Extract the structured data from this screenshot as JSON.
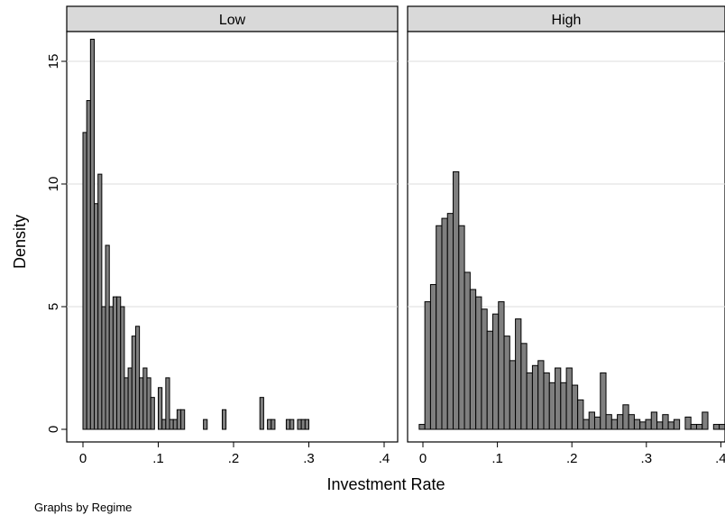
{
  "chart_data": {
    "type": "bar",
    "subtype": "histogram",
    "xlabel": "Investment Rate",
    "ylabel": "Density",
    "note": "Graphs by Regime",
    "ylim": [
      0,
      16
    ],
    "yticks": [
      0,
      5,
      10,
      15
    ],
    "bar_color": "#7f7f7f",
    "panels": [
      {
        "title": "Low",
        "xlim": [
          -0.02,
          0.4
        ],
        "xticks": [
          0,
          0.1,
          0.2,
          0.3,
          0.4
        ],
        "xtick_labels": [
          "0",
          ".1",
          ".2",
          ".3",
          ".4"
        ],
        "bin_start": 0,
        "bin_width": 0.005,
        "values": [
          12.1,
          13.4,
          15.9,
          9.2,
          10.4,
          5.0,
          7.5,
          5.0,
          5.4,
          5.4,
          5.0,
          2.1,
          2.5,
          3.8,
          4.2,
          2.1,
          2.5,
          2.1,
          1.3,
          0,
          1.7,
          0.4,
          2.1,
          0.4,
          0.4,
          0.8,
          0.8,
          0,
          0,
          0,
          0,
          0,
          0.4,
          0,
          0,
          0,
          0,
          0.8,
          0,
          0,
          0,
          0,
          0,
          0,
          0,
          0,
          0,
          1.3,
          0,
          0.4,
          0.4,
          0,
          0,
          0,
          0.4,
          0.4,
          0,
          0.4,
          0.4,
          0.4
        ]
      },
      {
        "title": "High",
        "xlim": [
          -0.02,
          0.4
        ],
        "xticks": [
          0,
          0.1,
          0.2,
          0.3,
          0.4
        ],
        "xtick_labels": [
          "0",
          ".1",
          ".2",
          ".3",
          ".4"
        ],
        "bin_start": -0.005,
        "bin_width": 0.0076,
        "values": [
          0.2,
          5.2,
          5.9,
          8.3,
          8.6,
          8.8,
          10.5,
          8.3,
          6.4,
          5.7,
          5.4,
          4.9,
          4.0,
          4.7,
          5.2,
          3.8,
          2.8,
          4.5,
          3.5,
          2.3,
          2.6,
          2.8,
          2.3,
          1.9,
          2.5,
          1.9,
          2.5,
          1.8,
          1.2,
          0.4,
          0.7,
          0.5,
          2.3,
          0.6,
          0.4,
          0.6,
          1.0,
          0.6,
          0.4,
          0.3,
          0.4,
          0.7,
          0.3,
          0.6,
          0.3,
          0.4,
          0,
          0.5,
          0.2,
          0.2,
          0.7,
          0,
          0.2,
          0.2
        ]
      }
    ]
  }
}
